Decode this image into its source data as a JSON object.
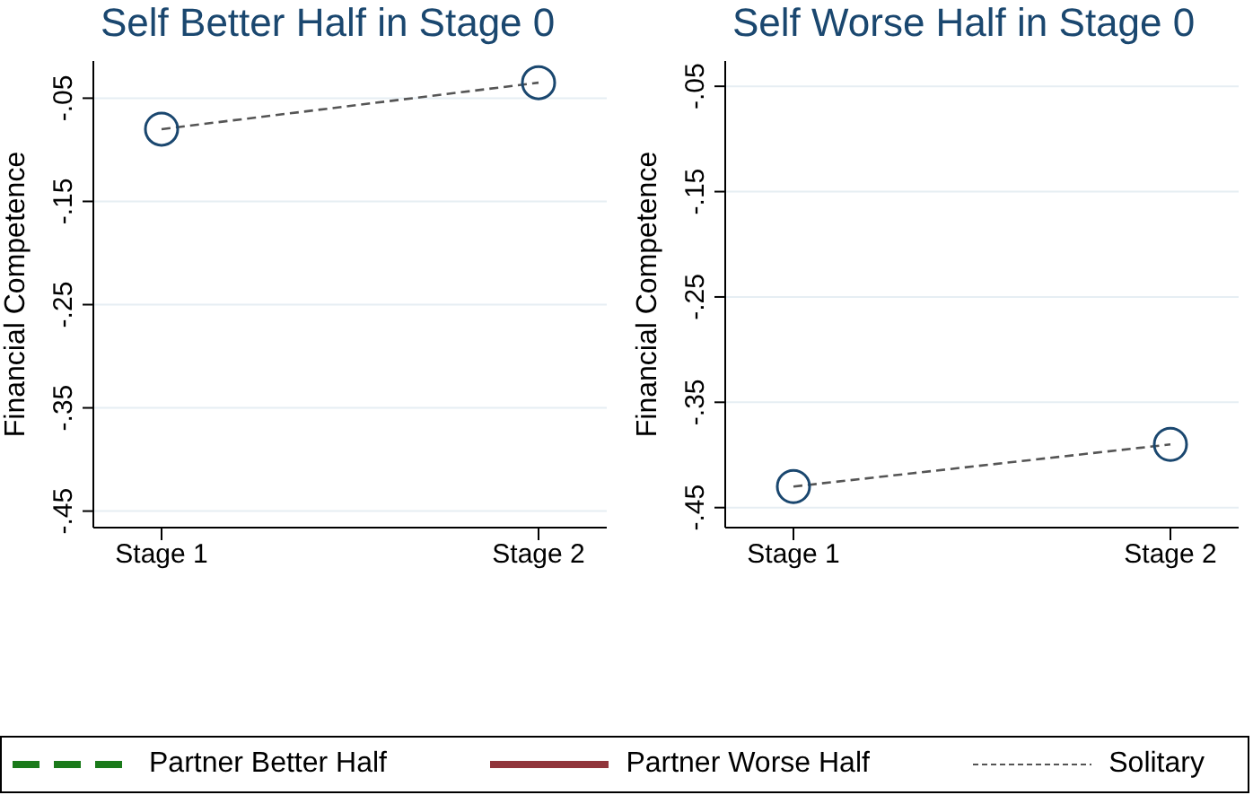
{
  "chart_data": [
    {
      "type": "line",
      "title": "Self Better Half in Stage 0",
      "ylabel": "Financial Competence",
      "categories": [
        "Stage 1",
        "Stage 2"
      ],
      "ylim": [
        -0.466,
        -0.014
      ],
      "yticks": [
        {
          "value": -0.05,
          "label": "-.05"
        },
        {
          "value": -0.15,
          "label": "-.15"
        },
        {
          "value": -0.25,
          "label": "-.25"
        },
        {
          "value": -0.35,
          "label": "-.35"
        },
        {
          "value": -0.45,
          "label": "-.45"
        }
      ],
      "grid": "y",
      "legend": "bottom",
      "series": [
        {
          "name": "Partner Better Half",
          "color": "#1a7a1a",
          "line_style": "dashed",
          "marker": "none",
          "values": [
            null,
            null
          ]
        },
        {
          "name": "Partner Worse Half",
          "color": "#90353b",
          "line_style": "solid",
          "marker": "none",
          "values": [
            null,
            null
          ]
        },
        {
          "name": "Solitary",
          "color": "#555555",
          "line_style": "dashed",
          "marker": "none",
          "values": [
            -0.08,
            -0.035
          ]
        },
        {
          "type": "scatter",
          "color": "#1a476f",
          "marker": "circle",
          "values": [
            -0.08,
            -0.035
          ]
        }
      ]
    },
    {
      "type": "line",
      "title": "Self Worse Half in Stage 0",
      "ylabel": "Financial Competence",
      "categories": [
        "Stage 1",
        "Stage 2"
      ],
      "ylim": [
        -0.469,
        -0.026
      ],
      "yticks": [
        {
          "value": -0.05,
          "label": "-.05"
        },
        {
          "value": -0.15,
          "label": "-.15"
        },
        {
          "value": -0.25,
          "label": "-.25"
        },
        {
          "value": -0.35,
          "label": "-.35"
        },
        {
          "value": -0.45,
          "label": "-.45"
        }
      ],
      "grid": "y",
      "series": [
        {
          "color": "#555555",
          "line_style": "dashed",
          "marker": "none",
          "values": [
            -0.43,
            -0.39
          ]
        },
        {
          "type": "scatter",
          "color": "#1a476f",
          "marker": "circle",
          "values": [
            -0.43,
            -0.39
          ]
        }
      ]
    }
  ]
}
